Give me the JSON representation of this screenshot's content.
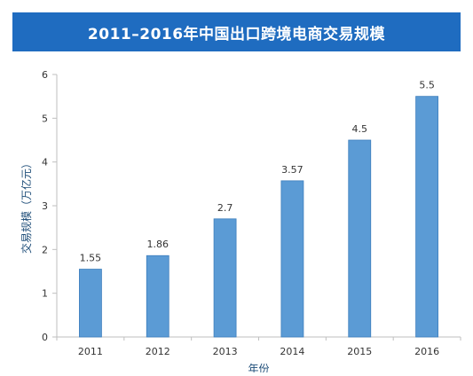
{
  "header": {
    "title": "2011–2016年中国出口跨境电商交易规模"
  },
  "colors": {
    "title_bar": "#1f6cc0",
    "bar": "#5b9bd5",
    "bar_stroke": "#3d7ebd",
    "axis_text": "#333333",
    "ylabel_text": "#1f4e79",
    "grid": "#e6e6e6",
    "axis_line": "#bfbfbf"
  },
  "chart_data": {
    "type": "bar",
    "title": "2011–2016年中国出口跨境电商交易规模",
    "xlabel": "年份",
    "ylabel": "交易规模（万亿元）",
    "categories": [
      "2011",
      "2012",
      "2013",
      "2014",
      "2015",
      "2016"
    ],
    "values": [
      1.55,
      1.86,
      2.7,
      3.57,
      4.5,
      5.5
    ],
    "value_labels": [
      "1.55",
      "1.86",
      "2.7",
      "3.57",
      "4.5",
      "5.5"
    ],
    "ylim": [
      0,
      6
    ],
    "yticks": [
      0,
      1,
      2,
      3,
      4,
      5,
      6
    ],
    "grid": false,
    "legend": "none"
  }
}
